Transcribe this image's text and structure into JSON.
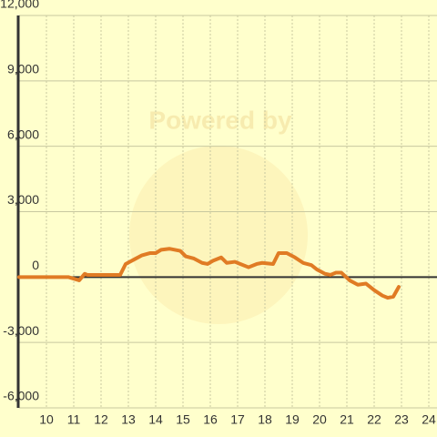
{
  "chart_data": {
    "type": "line",
    "watermark": "Powered by",
    "x": [
      9.0,
      10.8,
      11.2,
      11.4,
      11.5,
      12.7,
      12.9,
      13.2,
      13.5,
      13.8,
      14.0,
      14.2,
      14.5,
      14.9,
      15.1,
      15.4,
      15.7,
      15.9,
      16.1,
      16.4,
      16.6,
      16.9,
      17.1,
      17.4,
      17.7,
      17.9,
      18.3,
      18.5,
      18.8,
      19.1,
      19.4,
      19.7,
      19.9,
      20.2,
      20.4,
      20.6,
      20.8,
      21.1,
      21.4,
      21.7,
      22.0,
      22.3,
      22.5,
      22.7,
      22.9
    ],
    "series": [
      {
        "color": "#e07b24",
        "values": [
          0,
          0,
          -150,
          150,
          100,
          100,
          600,
          800,
          1000,
          1100,
          1100,
          1250,
          1300,
          1200,
          950,
          850,
          650,
          600,
          750,
          900,
          650,
          700,
          600,
          450,
          600,
          650,
          600,
          1100,
          1100,
          900,
          650,
          550,
          350,
          150,
          100,
          200,
          200,
          -150,
          -350,
          -300,
          -600,
          -850,
          -950,
          -900,
          -450
        ]
      }
    ],
    "xlim": [
      9,
      24.3
    ],
    "xticks": [
      10,
      11,
      12,
      13,
      14,
      15,
      16,
      17,
      18,
      19,
      20,
      21,
      22,
      23,
      24
    ],
    "ylim": [
      -6000,
      12000
    ],
    "yticks": [
      {
        "value": -6000,
        "label": "-6,000"
      },
      {
        "value": -3000,
        "label": "-3,000"
      },
      0,
      {
        "value": 3000,
        "label": "3,000"
      },
      {
        "value": 6000,
        "label": "6,000"
      },
      {
        "value": 9000,
        "label": "9,000"
      },
      {
        "value": 12000,
        "label": "12,000"
      }
    ],
    "grid": true
  }
}
